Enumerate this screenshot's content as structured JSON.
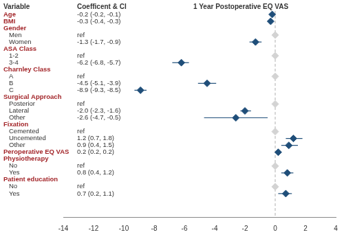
{
  "chart_data": {
    "type": "forest",
    "title": "1 Year Postoperative EQ VAS",
    "column_headers": [
      "Variable",
      "Coefficent & CI"
    ],
    "color": "#1f4e79",
    "reference_line": 0,
    "line_style": "dashed",
    "marker": "diamond",
    "xlim": [
      -14,
      4
    ],
    "xticks": [
      -14,
      -12,
      -10,
      -8,
      -6,
      -4,
      -2,
      0,
      2,
      4
    ],
    "grid": false,
    "groups": [
      {
        "name": "Age",
        "value": -0.2,
        "ci": [
          -0.2,
          -0.1
        ],
        "value_label": "-0.2 (-0.2, -0.1)"
      },
      {
        "name": "BMI",
        "value": -0.3,
        "ci": [
          -0.4,
          -0.3
        ],
        "value_label": "-0.3 (-0.4, -0.3)"
      },
      {
        "name": "Gender",
        "levels": [
          {
            "name": "Men",
            "value": 0,
            "value_label": "ref",
            "color": "#d3d3d3"
          },
          {
            "name": "Women",
            "value": -1.3,
            "ci": [
              -1.7,
              -0.9
            ],
            "value_label": "-1.3 (-1.7, -0.9)"
          }
        ]
      },
      {
        "name": "ASA Class",
        "levels": [
          {
            "name": "1-2",
            "value": 0,
            "value_label": "ref",
            "color": "#d3d3d3"
          },
          {
            "name": "3-4",
            "value": -6.2,
            "ci": [
              -6.8,
              -5.7
            ],
            "value_label": "-6.2 (-6.8, -5.7)"
          }
        ]
      },
      {
        "name": "Charnley Class",
        "levels": [
          {
            "name": "A",
            "value": 0,
            "value_label": "ref",
            "color": "#d3d3d3"
          },
          {
            "name": "B",
            "value": -4.5,
            "ci": [
              -5.1,
              -3.9
            ],
            "value_label": "-4.5 (-5.1, -3.9)"
          },
          {
            "name": "C",
            "value": -8.9,
            "ci": [
              -9.3,
              -8.5
            ],
            "value_label": "-8.9 (-9.3, -8.5)"
          }
        ]
      },
      {
        "name": "Surgical Approach",
        "levels": [
          {
            "name": "Posterior",
            "value": 0,
            "value_label": "ref",
            "color": "#d3d3d3"
          },
          {
            "name": "Lateral",
            "value": -2.0,
            "ci": [
              -2.3,
              -1.6
            ],
            "value_label": "-2.0 (-2.3, -1.6)"
          },
          {
            "name": "Other",
            "value": -2.6,
            "ci": [
              -4.7,
              -0.5
            ],
            "value_label": "-2.6 (-4.7, -0.5)"
          }
        ]
      },
      {
        "name": "Fixation",
        "levels": [
          {
            "name": "Cemented",
            "value": 0,
            "value_label": "ref",
            "color": "#d3d3d3"
          },
          {
            "name": "Uncemented",
            "value": 1.2,
            "ci": [
              0.7,
              1.8
            ],
            "value_label": "1.2 (0.7, 1.8)"
          },
          {
            "name": "Other",
            "value": 0.9,
            "ci": [
              0.4,
              1.5
            ],
            "value_label": "0.9 (0.4, 1.5)"
          }
        ]
      },
      {
        "name": "Peroperative EQ VAS",
        "value": 0.2,
        "ci": [
          0.2,
          0.2
        ],
        "value_label": "0.2 (0.2, 0.2)"
      },
      {
        "name": "Physiotherapy",
        "levels": [
          {
            "name": "No",
            "value": 0,
            "value_label": "ref",
            "color": "#d3d3d3"
          },
          {
            "name": "Yes",
            "value": 0.8,
            "ci": [
              0.4,
              1.2
            ],
            "value_label": "0.8 (0.4, 1.2)"
          }
        ]
      },
      {
        "name": "Patient education",
        "levels": [
          {
            "name": "No",
            "value": 0,
            "value_label": "ref",
            "color": "#d3d3d3"
          },
          {
            "name": "Yes",
            "value": 0.7,
            "ci": [
              0.2,
              1.1
            ],
            "value_label": "0.7 (0.2, 1.1)"
          }
        ]
      }
    ]
  }
}
